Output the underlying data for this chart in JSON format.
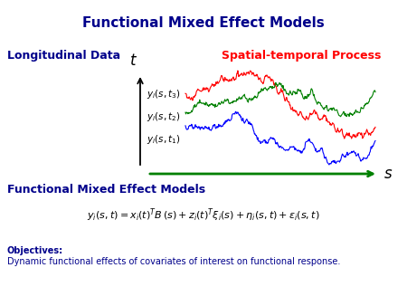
{
  "title": "Functional Mixed Effect Models",
  "title_color": "#00008B",
  "title_fontsize": 11,
  "longitudinal_label": "Longitudinal Data",
  "longitudinal_color": "#00008B",
  "longitudinal_fontsize": 9,
  "spatial_label": "Spatial-temporal Process",
  "spatial_color": "#FF0000",
  "spatial_fontsize": 9,
  "fmem_label": "Functional Mixed Effect Models",
  "fmem_color": "#00008B",
  "fmem_fontsize": 9,
  "objectives_bold": "Objectives:",
  "objectives_text": "Dynamic functional effects of covariates of interest on functional response.",
  "objectives_color": "#00008B",
  "objectives_fontsize": 7,
  "background_color": "#ffffff",
  "curve_colors": [
    "#FF0000",
    "#008000",
    "#0000FF"
  ],
  "axis_color": "#008000",
  "formula_fontsize": 8
}
